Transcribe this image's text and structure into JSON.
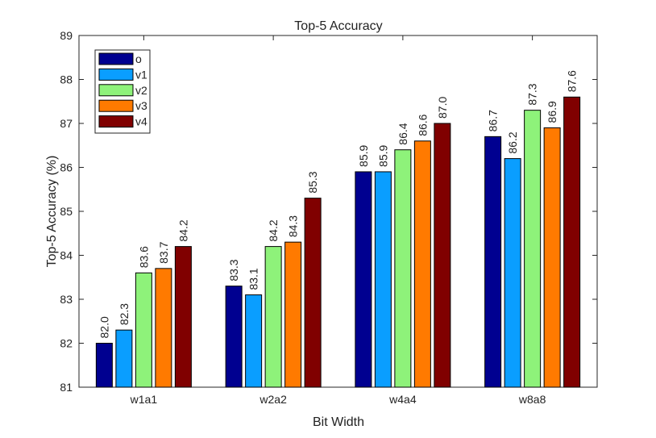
{
  "chart_data": {
    "type": "bar",
    "title": "Top-5 Accuracy",
    "xlabel": "Bit Width",
    "ylabel": "Top-5 Accuracy (%)",
    "ylim": [
      81,
      89
    ],
    "yticks": [
      81,
      82,
      83,
      84,
      85,
      86,
      87,
      88,
      89
    ],
    "categories": [
      "w1a1",
      "w2a2",
      "w4a4",
      "w8a8"
    ],
    "grid": false,
    "legend_position": "top-left",
    "series": [
      {
        "name": "o",
        "color": "#000090",
        "values": [
          82.0,
          83.3,
          85.9,
          86.7
        ],
        "labels": [
          "82.0",
          "83.3",
          "85.9",
          "86.7"
        ]
      },
      {
        "name": "v1",
        "color": "#0a9eff",
        "values": [
          82.3,
          83.1,
          85.9,
          86.2
        ],
        "labels": [
          "82.3",
          "83.1",
          "85.9",
          "86.2"
        ]
      },
      {
        "name": "v2",
        "color": "#8ef27a",
        "values": [
          83.6,
          84.2,
          86.4,
          87.3
        ],
        "labels": [
          "83.6",
          "84.2",
          "86.4",
          "87.3"
        ]
      },
      {
        "name": "v3",
        "color": "#ff7a00",
        "values": [
          83.7,
          84.3,
          86.6,
          86.9
        ],
        "labels": [
          "83.7",
          "84.3",
          "86.6",
          "86.9"
        ]
      },
      {
        "name": "v4",
        "color": "#800000",
        "values": [
          84.2,
          85.3,
          87.0,
          87.6
        ],
        "labels": [
          "84.2",
          "85.3",
          "87.0",
          "87.6"
        ]
      }
    ]
  }
}
